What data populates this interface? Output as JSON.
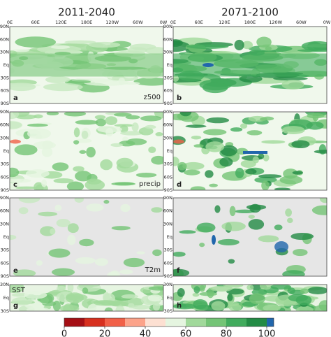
{
  "columns": [
    "2011-2040",
    "2071-2100"
  ],
  "panels": [
    {
      "letter": "a",
      "label": "z500"
    },
    {
      "letter": "b"
    },
    {
      "letter": "c",
      "label": "precip"
    },
    {
      "letter": "d"
    },
    {
      "letter": "e",
      "label": "T2m"
    },
    {
      "letter": "f"
    },
    {
      "letter": "g",
      "label": "SST"
    },
    {
      "letter": "h"
    }
  ],
  "lat_labels_full": [
    "90N",
    "60N",
    "30N",
    "Eq",
    "30S",
    "60S",
    "90S"
  ],
  "lat_labels_sst": [
    "30N",
    "Eq",
    "30S"
  ],
  "lon_labels": [
    "0E",
    "60E",
    "120E",
    "180E",
    "120W",
    "60W",
    "0W"
  ],
  "colorbar": {
    "range": [
      0,
      100
    ],
    "ticks": [
      0,
      20,
      40,
      60,
      80,
      100
    ],
    "colors": [
      "#a50f15",
      "#d7301f",
      "#f16048",
      "#fca38a",
      "#fde0d2",
      "#e5f5e0",
      "#a1d99b",
      "#74c476",
      "#41ab5d",
      "#238b45"
    ],
    "extension_color": "#2166ac"
  }
}
